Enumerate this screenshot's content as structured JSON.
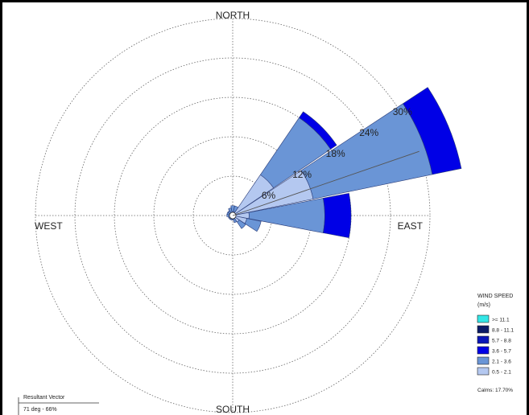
{
  "chart_data": {
    "type": "windrose",
    "radial_unit": "%",
    "radial_max": 30,
    "ring_values": [
      6,
      12,
      18,
      24,
      30
    ],
    "ring_labels": [
      "6%",
      "12%",
      "18%",
      "24%",
      "30%"
    ],
    "ring_label_bearing_deg": 58,
    "directions": {
      "north": "NORTH",
      "east": "EAST",
      "south": "SOUTH",
      "west": "WEST"
    },
    "sector_width_deg": 22.5,
    "speed_bins": [
      {
        "label": ">= 11.1",
        "color": "#33e6e6"
      },
      {
        "label": "8.8 - 11.1",
        "color": "#0a1a66"
      },
      {
        "label": "5.7 - 8.8",
        "color": "#0a16b8"
      },
      {
        "label": "3.6 - 5.7",
        "color": "#0000e6"
      },
      {
        "label": "2.1 - 3.6",
        "color": "#6a95d6"
      },
      {
        "label": "0.5 - 2.1",
        "color": "#b4c8f0"
      }
    ],
    "sectors": [
      {
        "bearing": 22.5,
        "values": [
          0,
          0,
          0,
          0,
          0.9,
          0.6
        ]
      },
      {
        "bearing": 45,
        "values": [
          0,
          0,
          0,
          1.1,
          10.5,
          7.5
        ]
      },
      {
        "bearing": 67.5,
        "values": [
          0,
          0,
          0,
          4.5,
          18.5,
          12.5
        ]
      },
      {
        "bearing": 90,
        "values": [
          0,
          0,
          0,
          4.0,
          11.5,
          2.5
        ]
      },
      {
        "bearing": 112.5,
        "values": [
          0,
          0,
          0,
          0,
          2.2,
          2.2
        ]
      },
      {
        "bearing": 135,
        "values": [
          0,
          0,
          0,
          0,
          1.2,
          1.2
        ]
      },
      {
        "bearing": 157.5,
        "values": [
          0,
          0,
          0,
          0,
          0.6,
          0.5
        ]
      },
      {
        "bearing": 180,
        "values": [
          0,
          0,
          0,
          0,
          0.4,
          0.3
        ]
      },
      {
        "bearing": 202.5,
        "values": [
          0,
          0,
          0,
          0,
          0.4,
          0.3
        ]
      },
      {
        "bearing": 225,
        "values": [
          0,
          0,
          0,
          0,
          0.4,
          0.3
        ]
      },
      {
        "bearing": 247.5,
        "values": [
          0,
          0,
          0,
          0,
          0.4,
          0.3
        ]
      },
      {
        "bearing": 270,
        "values": [
          0,
          0,
          0,
          0,
          0.5,
          0.4
        ]
      },
      {
        "bearing": 292.5,
        "values": [
          0,
          0,
          0,
          0,
          0.5,
          0.4
        ]
      },
      {
        "bearing": 315,
        "values": [
          0,
          0,
          0,
          0,
          0.5,
          0.4
        ]
      },
      {
        "bearing": 337.5,
        "values": [
          0,
          0,
          0,
          0,
          0.7,
          0.5
        ]
      },
      {
        "bearing": 0,
        "values": [
          0,
          0,
          0,
          0,
          0.9,
          0.6
        ]
      }
    ],
    "resultant_vector": {
      "direction_deg": 71,
      "percent": 66
    }
  },
  "legend": {
    "title_line1": "WIND SPEED",
    "title_line2": "(m/s)",
    "calms": "Calms: 17.70%"
  },
  "resultant": {
    "title": "Resultant Vector",
    "value": "71 deg - 66%"
  },
  "colors": {
    "grid": "#666666",
    "sector_stroke": "#2a3c78",
    "resultant_line": "#555555"
  }
}
